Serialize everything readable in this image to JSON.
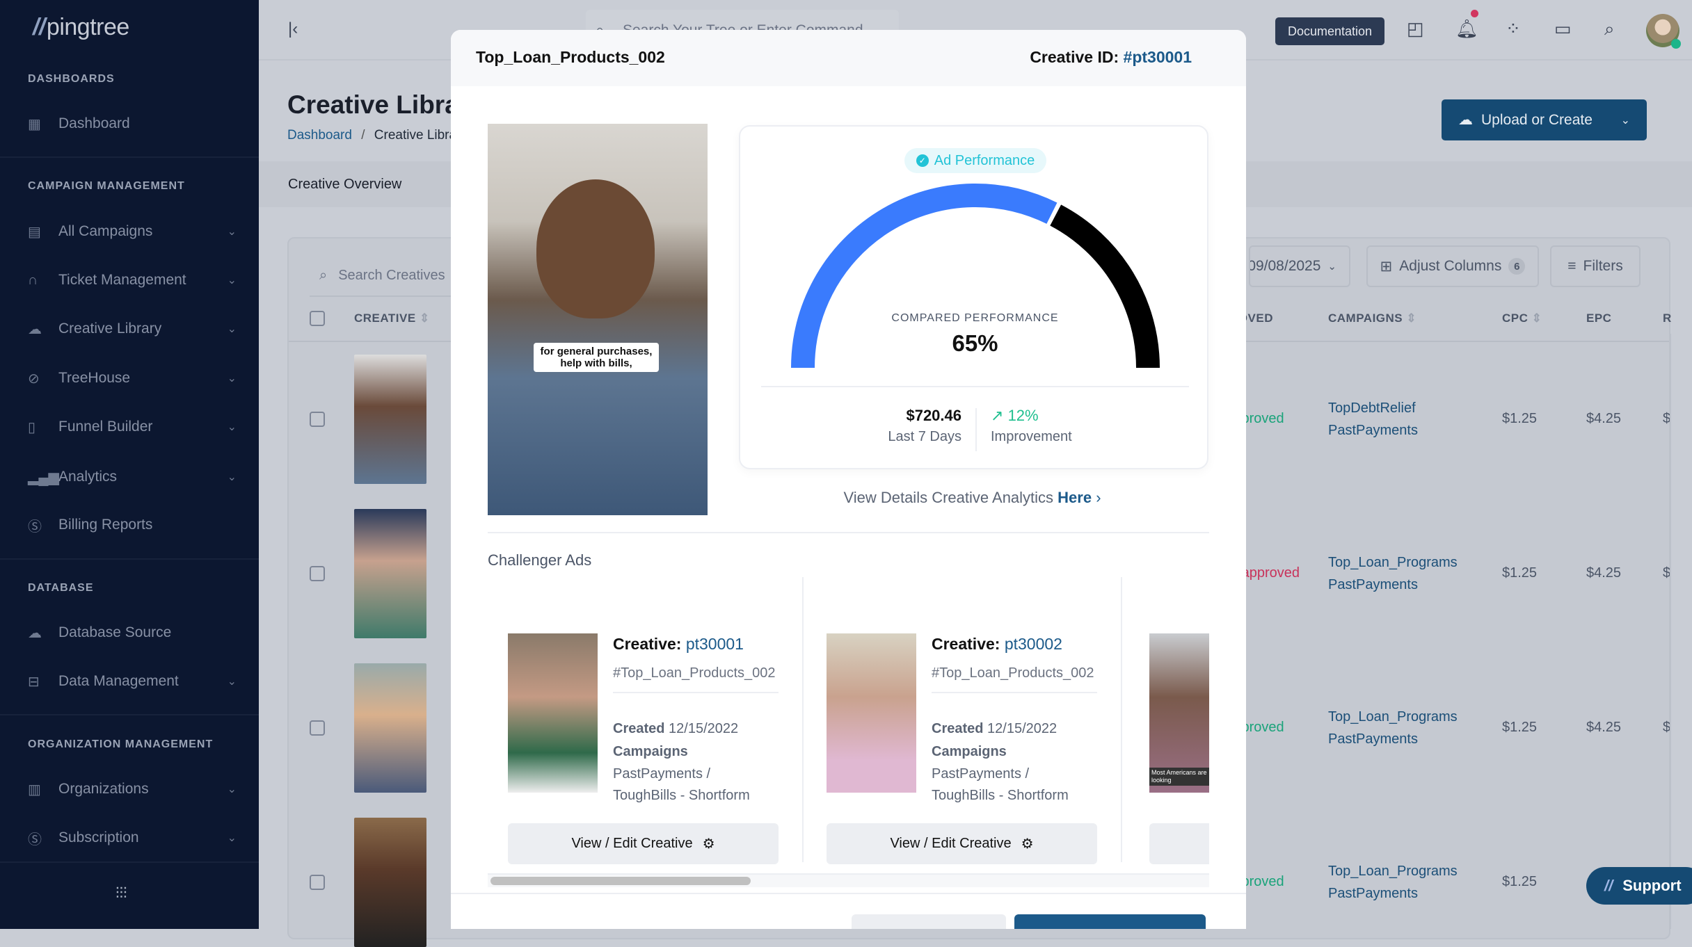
{
  "sidebar": {
    "logo": "pingtree",
    "sections": [
      {
        "title": "DASHBOARDS",
        "items": [
          {
            "label": "Dashboard",
            "icon": "dashboard-icon"
          }
        ]
      },
      {
        "title": "CAMPAIGN MANAGEMENT",
        "items": [
          {
            "label": "All Campaigns",
            "icon": "campaigns-icon"
          },
          {
            "label": "Ticket Management",
            "icon": "headset-icon"
          },
          {
            "label": "Creative Library",
            "icon": "cloud-icon"
          },
          {
            "label": "TreeHouse",
            "icon": "compass-icon"
          },
          {
            "label": "Funnel Builder",
            "icon": "funnel-icon"
          },
          {
            "label": "Analytics",
            "icon": "bar-chart-icon"
          },
          {
            "label": "Billing Reports",
            "icon": "dollar-icon"
          }
        ]
      },
      {
        "title": "DATABASE",
        "items": [
          {
            "label": "Database Source",
            "icon": "cloud-icon"
          },
          {
            "label": "Data Management",
            "icon": "server-icon"
          }
        ]
      },
      {
        "title": "ORGANIZATION MANAGEMENT",
        "items": [
          {
            "label": "Organizations",
            "icon": "building-icon"
          },
          {
            "label": "Subscription",
            "icon": "dollar-icon"
          }
        ]
      }
    ]
  },
  "topbar": {
    "search_placeholder": "Search Your Tree or Enter Command",
    "documentation": "Documentation"
  },
  "page": {
    "title": "Creative Library",
    "breadcrumb": [
      "Dashboard",
      "Creative Library"
    ],
    "tab": "Creative Overview",
    "upload_button": "Upload or Create",
    "search_placeholder": "Search Creatives",
    "date_value": "09/08/2025",
    "adjust_columns": "Adjust Columns",
    "adjust_columns_count": "6",
    "filters": "Filters",
    "columns": [
      "CREATIVE",
      "APPROVED",
      "CAMPAIGNS",
      "CPC",
      "EPC",
      "R"
    ],
    "rows": [
      {
        "status": "Approved",
        "status_color": "#1aa37a",
        "campaigns": [
          "TopDebtRelief",
          "PastPayments"
        ],
        "cpc": "$1.25",
        "epc": "$4.25",
        "r": "$"
      },
      {
        "status": "Unapproved",
        "status_color": "#c8325a",
        "campaigns": [
          "Top_Loan_Programs",
          "PastPayments"
        ],
        "cpc": "$1.25",
        "epc": "$4.25",
        "r": "$"
      },
      {
        "status": "Approved",
        "status_color": "#1aa37a",
        "campaigns": [
          "Top_Loan_Programs",
          "PastPayments"
        ],
        "cpc": "$1.25",
        "epc": "$4.25",
        "r": "$"
      },
      {
        "status": "Approved",
        "status_color": "#1aa37a",
        "campaigns": [
          "Top_Loan_Programs",
          "PastPayments"
        ],
        "cpc": "$1.25",
        "epc": "",
        "r": ""
      }
    ],
    "support": "Support"
  },
  "modal": {
    "title": "Top_Loan_Products_002",
    "creative_id_label": "Creative ID:",
    "creative_id": "#pt30001",
    "video_caption": "for general purchases, help with bills,",
    "badge": "Ad Performance",
    "gauge_label": "COMPARED PERFORMANCE",
    "gauge_value": "65%",
    "gauge_fraction": 0.65,
    "revenue": "$720.46",
    "revenue_label": "Last 7 Days",
    "improvement": "12%",
    "improvement_label": "Improvement",
    "details_text": "View Details Creative Analytics",
    "details_link": "Here",
    "challenger_title": "Challenger Ads",
    "challengers": [
      {
        "label": "Creative:",
        "id": "pt30001",
        "tag": "#Top_Loan_Products_002",
        "created_label": "Created",
        "created": "12/15/2022",
        "campaigns_label": "Campaigns",
        "campaigns": [
          "PastPayments /",
          "ToughBills - Shortform"
        ],
        "button": "View / Edit Creative"
      },
      {
        "label": "Creative:",
        "id": "pt30002",
        "tag": "#Top_Loan_Products_002",
        "created_label": "Created",
        "created": "12/15/2022",
        "campaigns_label": "Campaigns",
        "campaigns": [
          "PastPayments /",
          "ToughBills - Shortform"
        ],
        "button": "View / Edit Creative"
      }
    ],
    "third_caption": "Most Americans are looking"
  },
  "colors": {
    "accent": "#1c5a8a",
    "gauge_fill": "#3a7bfd",
    "gauge_rest": "#000000",
    "positive": "#1fbf8f",
    "badge": "#22c3d6"
  }
}
